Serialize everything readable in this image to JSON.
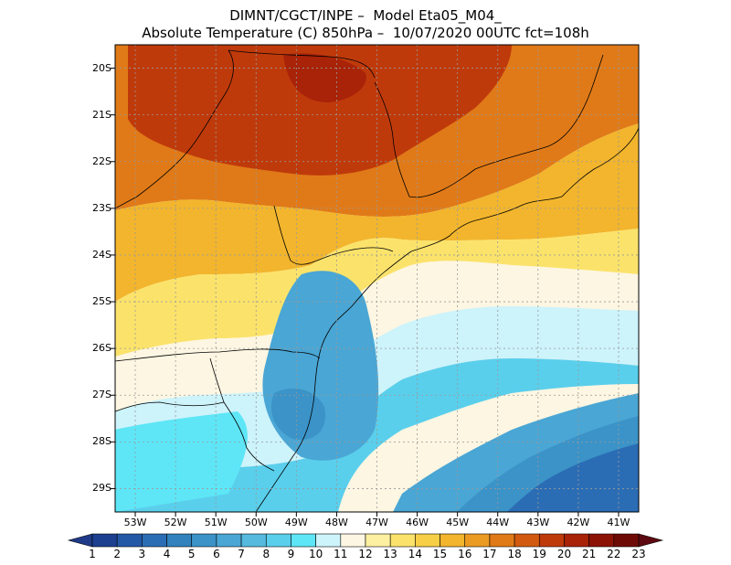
{
  "title": {
    "line1": "DIMNT/CGCT/INPE –  Model Eta05_M04_",
    "line2": "Absolute Temperature (C) 850hPa –  10/07/2020 00UTC fct=108h"
  },
  "axes": {
    "lat_labels": [
      "20S",
      "21S",
      "22S",
      "23S",
      "24S",
      "25S",
      "26S",
      "27S",
      "28S",
      "29S"
    ],
    "lon_labels": [
      "53W",
      "52W",
      "51W",
      "50W",
      "49W",
      "48W",
      "47W",
      "46W",
      "45W",
      "44W",
      "43W",
      "42W",
      "41W"
    ]
  },
  "colorbar": {
    "labels": [
      "1",
      "2",
      "3",
      "4",
      "5",
      "6",
      "7",
      "8",
      "9",
      "10",
      "11",
      "12",
      "13",
      "14",
      "15",
      "16",
      "17",
      "18",
      "19",
      "20",
      "21",
      "22",
      "23"
    ],
    "colors": [
      "#1c3f8f",
      "#2358a6",
      "#2b6db4",
      "#3182bd",
      "#3b93c8",
      "#4aa6d4",
      "#55bade",
      "#5acfec",
      "#5ee6f7",
      "#cdf3fb",
      "#fdf6e2",
      "#fdf0a0",
      "#fbe36b",
      "#f7cf46",
      "#f2b52d",
      "#ec9b22",
      "#e07a18",
      "#d25a10",
      "#bf3a0b",
      "#a82308",
      "#8d1206",
      "#6e0a05"
    ]
  },
  "chart_data": {
    "type": "heatmap",
    "title": "Absolute Temperature (C) 850hPa",
    "value_range": [
      1,
      23
    ],
    "x_range": [
      "53.5W",
      "40.5W"
    ],
    "y_range": [
      "19.5S",
      "29.5S"
    ],
    "regions": [
      {
        "area": "northwest interior (~20S-22S, 50W-47W)",
        "value": 20
      },
      {
        "area": "north coast (~22S-23S)",
        "value": 17
      },
      {
        "area": "central (~24S)",
        "value": 13
      },
      {
        "area": "southeast ocean (~28S-29S, 43W-41W)",
        "value": 4
      },
      {
        "area": "south coast (~27S-28S, 49W)",
        "value": 7
      }
    ]
  }
}
